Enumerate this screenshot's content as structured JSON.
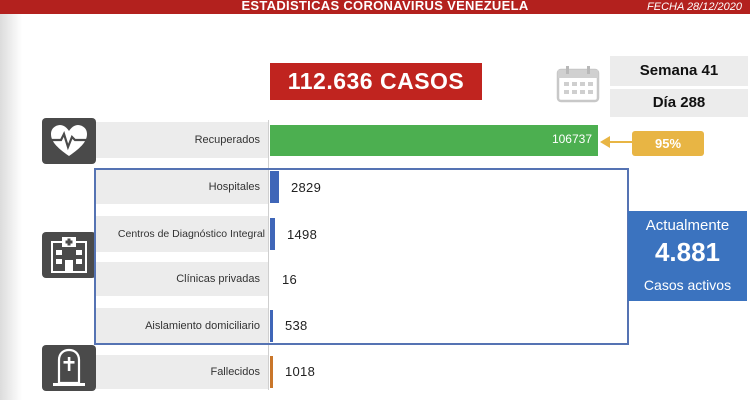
{
  "header": {
    "title": "ESTADÍSTICAS CORONAVIRUS VENEZUELA",
    "date": "FECHA 28/12/2020"
  },
  "total_cases": "112.636 CASOS",
  "week": "Semana 41",
  "day": "Día 288",
  "recovered_percent": "95%",
  "active": {
    "top": "Actualmente",
    "value": "4.881",
    "bottom": "Casos activos"
  },
  "icons": [
    "calendar-icon",
    "heart-pulse-icon",
    "hospital-icon",
    "tombstone-icon"
  ],
  "colors": {
    "header": "#b3211e",
    "total_box": "#c0241f",
    "recovered_bar": "#4caf50",
    "hospital_bar": "#3f66b8",
    "deaths_bar": "#c9762a",
    "percent_box": "#e8b544",
    "active_box": "#3b73bf"
  },
  "chart_data": {
    "type": "bar",
    "orientation": "horizontal",
    "categories": [
      "Recuperados",
      "Hospitales",
      "Centros de Diagnóstico Integral",
      "Clínicas privadas",
      "Aislamiento domiciliario",
      "Fallecidos"
    ],
    "values": [
      106737,
      2829,
      1498,
      16,
      538,
      1018
    ],
    "value_labels": [
      "106737",
      "2829",
      "1498",
      "16",
      "538",
      "1018"
    ],
    "xlim": [
      0,
      106737
    ]
  }
}
